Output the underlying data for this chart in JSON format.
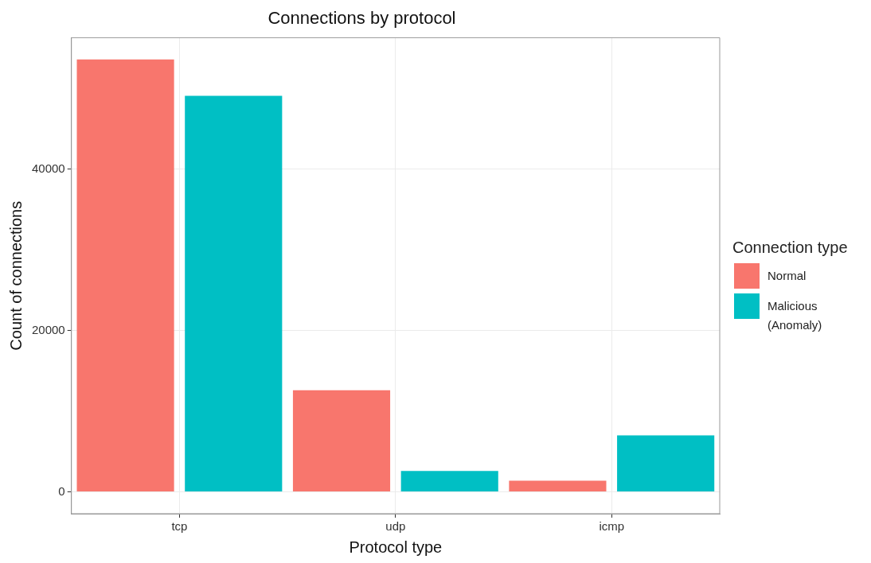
{
  "chart_data": {
    "type": "bar",
    "title": "Connections by protocol",
    "xlabel": "Protocol type",
    "ylabel": "Count of connections",
    "legend_title": "Connection type",
    "categories": [
      "tcp",
      "udp",
      "icmp"
    ],
    "series": [
      {
        "name": "Normal",
        "color": "#f8766d",
        "values": [
          53600,
          12600,
          1400
        ]
      },
      {
        "name": "Malicious (Anomaly)",
        "color": "#00bfc4",
        "values": [
          49100,
          2600,
          7000
        ]
      }
    ],
    "ylim": [
      -2700,
      56300
    ],
    "yticks": [
      0,
      20000,
      40000
    ],
    "grid": true,
    "legend": "right"
  }
}
